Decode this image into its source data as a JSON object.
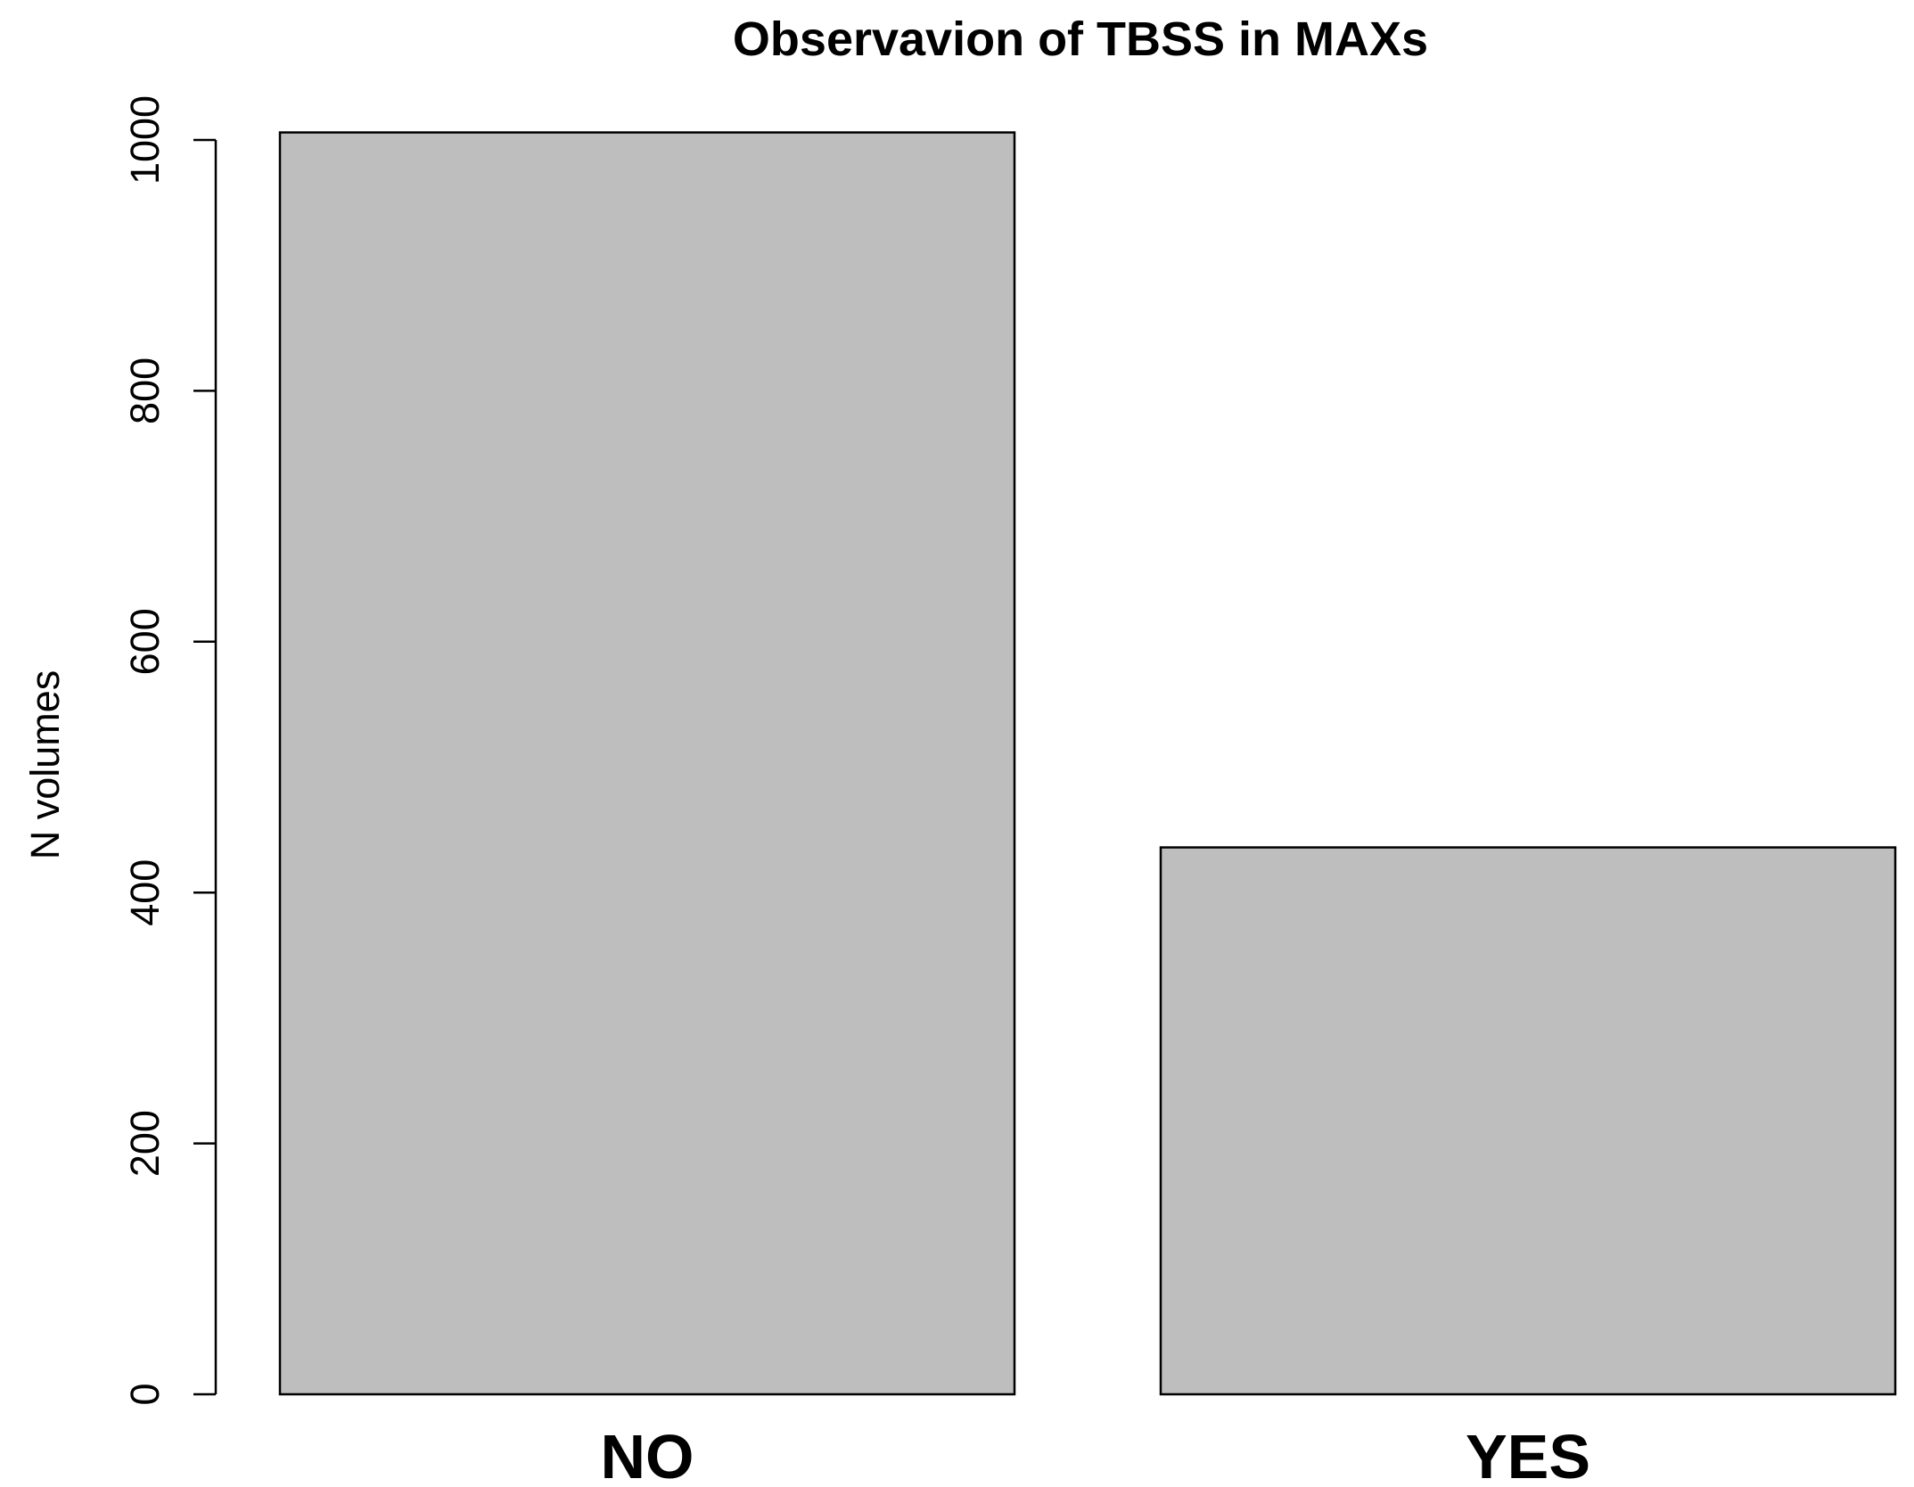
{
  "chart_data": {
    "type": "bar",
    "title": "Observavion of TBSS in MAXs",
    "xlabel": "",
    "ylabel": "N volumes",
    "categories": [
      "NO",
      "YES"
    ],
    "values": [
      1006,
      436
    ],
    "ylim": [
      0,
      1000
    ],
    "yticks": [
      0,
      200,
      400,
      600,
      800,
      1000
    ],
    "bar_color": "#bebebe",
    "grid": false,
    "legend": "none"
  }
}
